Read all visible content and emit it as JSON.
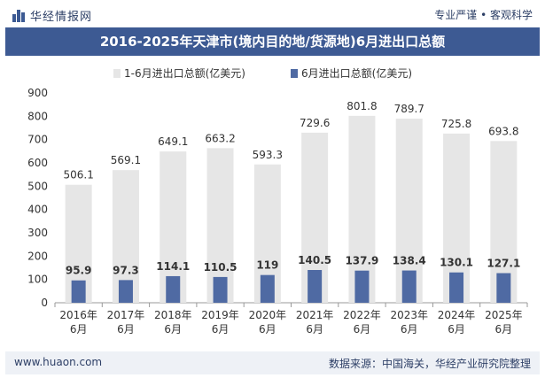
{
  "header": {
    "logo_text": "华经情报网",
    "slogan": "专业严谨 • 客观科学"
  },
  "footer": {
    "website": "www.huaon.com",
    "source": "数据来源：中国海关，华经产业研究院整理"
  },
  "colors": {
    "series1": "#e6e6e6",
    "series2": "#4f6aa3",
    "title_bg": "#3d5a93",
    "axis": "#999999"
  },
  "chart_data": {
    "type": "bar",
    "title": "2016-2025年天津市(境内目的地/货源地)6月进出口总额",
    "categories": [
      "2016年\n6月",
      "2017年\n6月",
      "2018年\n6月",
      "2019年\n6月",
      "2020年\n6月",
      "2021年\n6月",
      "2022年\n6月",
      "2023年\n6月",
      "2024年\n6月",
      "2025年\n6月"
    ],
    "series": [
      {
        "name": "1-6月进出口总额(亿美元)",
        "values": [
          506.1,
          569.1,
          649.1,
          663.2,
          593.3,
          729.6,
          801.8,
          789.7,
          725.8,
          693.8
        ]
      },
      {
        "name": "6月进出口总额(亿美元)",
        "values": [
          95.9,
          97.3,
          114.1,
          110.5,
          119,
          140.5,
          137.9,
          138.4,
          130.1,
          127.1
        ]
      }
    ],
    "series_labels": [
      [
        "506.1",
        "569.1",
        "649.1",
        "663.2",
        "593.3",
        "729.6",
        "801.8",
        "789.7",
        "725.8",
        "693.8"
      ],
      [
        "95.9",
        "97.3",
        "114.1",
        "110.5",
        "119",
        "140.5",
        "137.9",
        "138.4",
        "130.1",
        "127.1"
      ]
    ],
    "yticks": [
      0,
      100,
      200,
      300,
      400,
      500,
      600,
      700,
      800,
      900
    ],
    "ylim": [
      0,
      900
    ],
    "legend_position": "top-left",
    "grid": false
  }
}
